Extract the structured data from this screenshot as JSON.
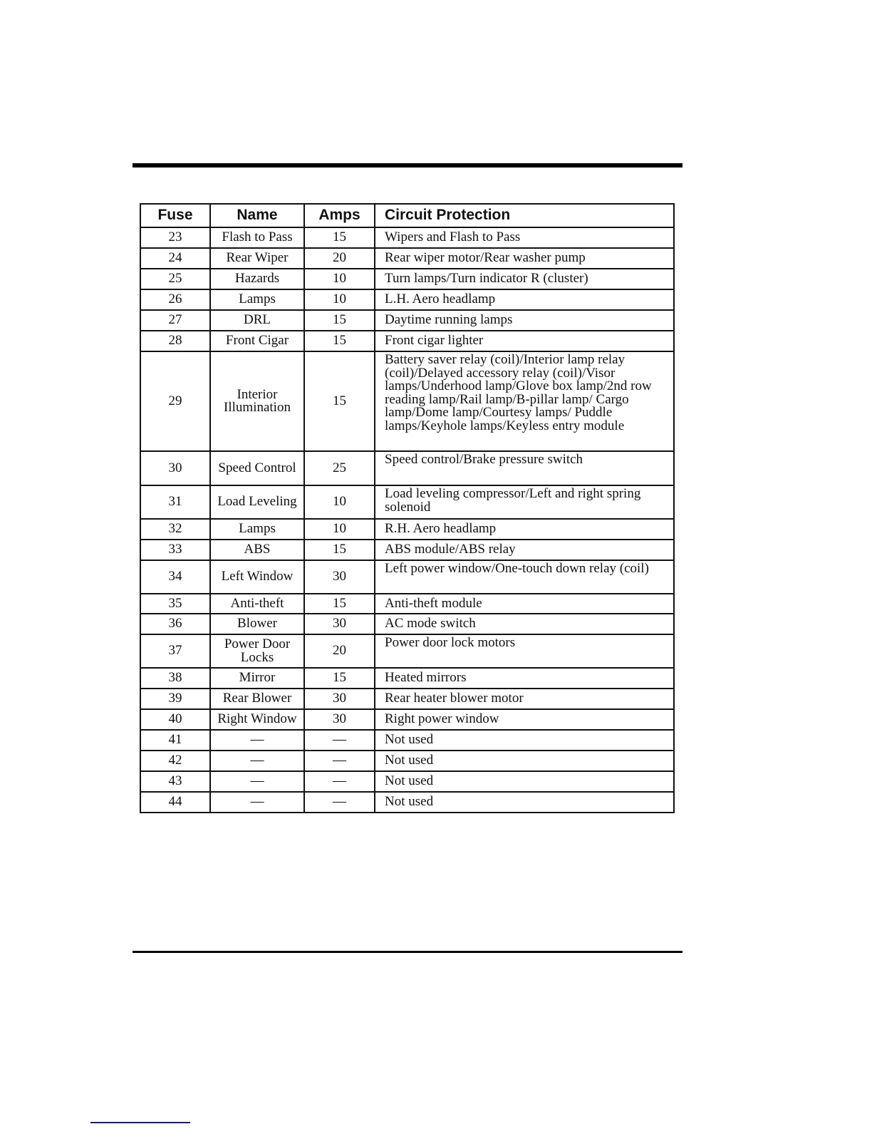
{
  "table": {
    "headers": [
      "Fuse",
      "Name",
      "Amps",
      "Circuit Protection"
    ],
    "rows": [
      {
        "fuse": "23",
        "name": "Flash to Pass",
        "amps": "15",
        "desc": "Wipers and Flash to Pass"
      },
      {
        "fuse": "24",
        "name": "Rear Wiper",
        "amps": "20",
        "desc": "Rear wiper motor/Rear washer pump"
      },
      {
        "fuse": "25",
        "name": "Hazards",
        "amps": "10",
        "desc": "Turn lamps/Turn indicator R (cluster)"
      },
      {
        "fuse": "26",
        "name": "Lamps",
        "amps": "10",
        "desc": "L.H. Aero headlamp"
      },
      {
        "fuse": "27",
        "name": "DRL",
        "amps": "15",
        "desc": "Daytime running lamps"
      },
      {
        "fuse": "28",
        "name": "Front Cigar",
        "amps": "15",
        "desc": "Front cigar lighter"
      },
      {
        "fuse": "29",
        "name": "Interior Illumination",
        "amps": "15",
        "desc": "Battery saver relay (coil)/Interior lamp relay (coil)/Delayed accessory relay (coil)/Visor lamps/Underhood lamp/Glove box lamp/2nd row reading lamp/Rail lamp/B-pillar lamp/ Cargo lamp/Dome lamp/Courtesy lamps/ Puddle lamps/Keyhole lamps/Keyless entry module"
      },
      {
        "fuse": "30",
        "name": "Speed Control",
        "amps": "25",
        "desc": "Speed control/Brake pressure switch"
      },
      {
        "fuse": "31",
        "name": "Load Leveling",
        "amps": "10",
        "desc": "Load leveling compressor/Left and right spring solenoid"
      },
      {
        "fuse": "32",
        "name": "Lamps",
        "amps": "10",
        "desc": "R.H. Aero headlamp"
      },
      {
        "fuse": "33",
        "name": "ABS",
        "amps": "15",
        "desc": "ABS module/ABS relay"
      },
      {
        "fuse": "34",
        "name": "Left Window",
        "amps": "30",
        "desc": "Left power window/One-touch down relay (coil)"
      },
      {
        "fuse": "35",
        "name": "Anti-theft",
        "amps": "15",
        "desc": "Anti-theft module"
      },
      {
        "fuse": "36",
        "name": "Blower",
        "amps": "30",
        "desc": "AC mode switch"
      },
      {
        "fuse": "37",
        "name": "Power Door Locks",
        "amps": "20",
        "desc": "Power door lock motors"
      },
      {
        "fuse": "38",
        "name": "Mirror",
        "amps": "15",
        "desc": "Heated mirrors"
      },
      {
        "fuse": "39",
        "name": "Rear Blower",
        "amps": "30",
        "desc": "Rear heater blower motor"
      },
      {
        "fuse": "40",
        "name": "Right Window",
        "amps": "30",
        "desc": "Right power window"
      },
      {
        "fuse": "41",
        "name": "—",
        "amps": "—",
        "desc": "Not used"
      },
      {
        "fuse": "42",
        "name": "—",
        "amps": "—",
        "desc": "Not used"
      },
      {
        "fuse": "43",
        "name": "—",
        "amps": "—",
        "desc": "Not used"
      },
      {
        "fuse": "44",
        "name": "—",
        "amps": "—",
        "desc": "Not used"
      }
    ]
  }
}
